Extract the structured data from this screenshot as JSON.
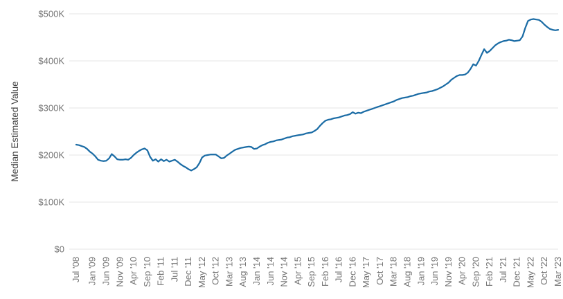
{
  "chart_data": {
    "type": "line",
    "title": "",
    "xlabel": "",
    "ylabel": "Median Estimated Value",
    "legend": "none",
    "grid": "horizontal-only",
    "units": "USD thousands",
    "frequency": "monthly",
    "x_range": {
      "start": "Jul 2008",
      "end": "Mar 2023"
    },
    "n_points": 177,
    "ylim": [
      0,
      500000
    ],
    "y_tick_labels": [
      "$0",
      "$100K",
      "$200K",
      "$300K",
      "$400K",
      "$500K"
    ],
    "y_tick_values_thousands": [
      0,
      100,
      200,
      300,
      400,
      500
    ],
    "x_tick_labels": [
      "Jul '08",
      "Jan '09",
      "Jun '09",
      "Nov '09",
      "Apr '10",
      "Sep '10",
      "Feb '11",
      "Jul '11",
      "Dec '11",
      "May '12",
      "Oct '12",
      "Mar '13",
      "Aug '13",
      "Jan '14",
      "Jun '14",
      "Nov '14",
      "Apr '15",
      "Sep '15",
      "Feb '16",
      "Jul '16",
      "Dec '16",
      "May '17",
      "Oct '17",
      "Mar '18",
      "Aug '18",
      "Jan '19",
      "Jun '19",
      "Nov '19",
      "Apr '20",
      "Sep '20",
      "Feb '21",
      "Jul '21",
      "Dec '21",
      "May '22",
      "Oct '22",
      "Mar '23"
    ],
    "x_tick_month_indices": [
      0,
      6,
      11,
      16,
      21,
      26,
      31,
      36,
      41,
      46,
      51,
      56,
      61,
      66,
      71,
      76,
      81,
      86,
      91,
      96,
      101,
      106,
      111,
      116,
      121,
      126,
      131,
      136,
      141,
      146,
      151,
      156,
      161,
      166,
      171,
      176
    ],
    "values_thousands": [
      222,
      221,
      219,
      217,
      213,
      207,
      203,
      197,
      190,
      188,
      187,
      188,
      193,
      202,
      197,
      191,
      190,
      190,
      191,
      190,
      194,
      200,
      205,
      209,
      212,
      214,
      210,
      196,
      188,
      191,
      186,
      191,
      187,
      190,
      186,
      188,
      190,
      186,
      181,
      177,
      174,
      170,
      167,
      170,
      174,
      183,
      195,
      199,
      200,
      201,
      201,
      201,
      197,
      193,
      194,
      199,
      203,
      207,
      211,
      213,
      215,
      216,
      217,
      218,
      217,
      213,
      214,
      218,
      221,
      223,
      226,
      228,
      229,
      231,
      232,
      233,
      235,
      237,
      238,
      240,
      241,
      242,
      243,
      244,
      246,
      247,
      248,
      251,
      255,
      262,
      268,
      273,
      275,
      276,
      278,
      279,
      280,
      282,
      284,
      285,
      287,
      291,
      288,
      290,
      289,
      292,
      294,
      296,
      298,
      300,
      302,
      304,
      306,
      308,
      310,
      312,
      314,
      317,
      319,
      321,
      322,
      323,
      325,
      326,
      328,
      330,
      331,
      332,
      333,
      335,
      336,
      338,
      340,
      343,
      346,
      350,
      354,
      360,
      364,
      368,
      370,
      370,
      371,
      375,
      383,
      393,
      390,
      400,
      413,
      425,
      417,
      421,
      427,
      433,
      437,
      440,
      442,
      443,
      445,
      444,
      442,
      443,
      444,
      452,
      470,
      485,
      488,
      489,
      488,
      487,
      483,
      477,
      472,
      468,
      466,
      465,
      466
    ],
    "line_color": "#1b6ca5",
    "gridline_color": "#e4e4e4",
    "tick_label_color": "#757575",
    "axis_title_color": "#3f3f3f",
    "background_color": "#ffffff"
  }
}
